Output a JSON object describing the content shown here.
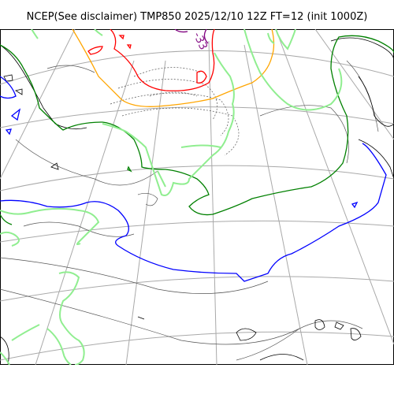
{
  "figure": {
    "title": "NCEP(See disclaimer) TMP850 2025/12/10 12Z FT=12 (init 1000Z)"
  },
  "map": {
    "projection": "polar stereographic",
    "field": "TMP850",
    "contour_labels": [
      "-33"
    ],
    "colors": {
      "coastline": "#000000",
      "graticule": "#a9a9a9",
      "height_contours": "#555555",
      "contour_0C": "#0000ff",
      "contour_minus6C": "#008000",
      "contour_minus15C": "#ffa500",
      "contour_minus21C": "#ff0000",
      "contour_minus33C": "#800080",
      "light_green_isotherm": "#90ee90"
    }
  }
}
